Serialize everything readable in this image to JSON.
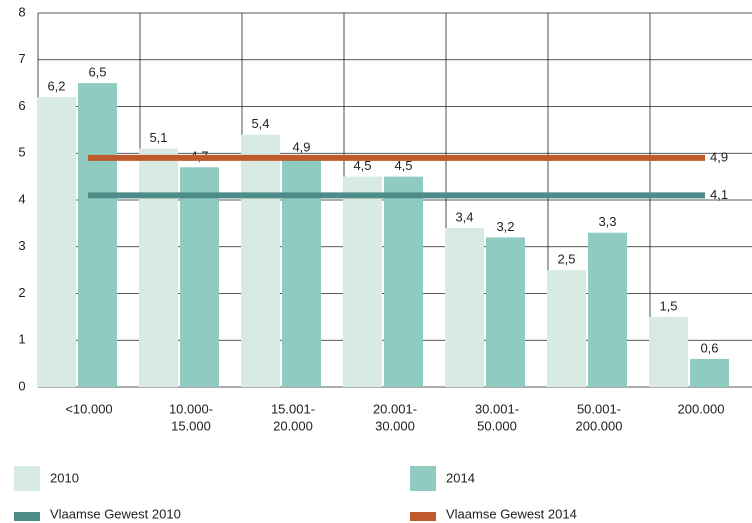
{
  "chart_data": {
    "type": "bar",
    "categories": [
      [
        "<10.000"
      ],
      [
        "10.000-",
        "15.000"
      ],
      [
        "15.001-",
        "20.000"
      ],
      [
        "20.001-",
        "30.000"
      ],
      [
        "30.001-",
        "50.000"
      ],
      [
        "50.001-",
        "200.000"
      ],
      [
        "200.000"
      ]
    ],
    "series": [
      {
        "name": "2010",
        "color": "#d7ebe2",
        "values": [
          6.2,
          5.1,
          5.4,
          4.5,
          3.4,
          2.5,
          1.5
        ],
        "value_labels": [
          "6,2",
          "5,1",
          "5,4",
          "4,5",
          "3,4",
          "2,5",
          "1,5"
        ]
      },
      {
        "name": "2014",
        "color": "#8fcbc0",
        "values": [
          6.5,
          4.7,
          4.9,
          4.5,
          3.2,
          3.3,
          0.6
        ],
        "value_labels": [
          "6,5",
          "4,7",
          "4,9",
          "4,5",
          "3,2",
          "3,3",
          "0,6"
        ]
      }
    ],
    "reference_lines": [
      {
        "name": "Vlaamse Gewest 2010",
        "color": "#4e8c8a",
        "value": 4.1,
        "value_label": "4,1"
      },
      {
        "name": "Vlaamse Gewest 2014",
        "color": "#c05a2c",
        "value": 4.9,
        "value_label": "4,9"
      }
    ],
    "ylim": [
      0,
      8
    ],
    "yticks": [
      0,
      1,
      2,
      3,
      4,
      5,
      6,
      7,
      8
    ],
    "grid": true
  }
}
